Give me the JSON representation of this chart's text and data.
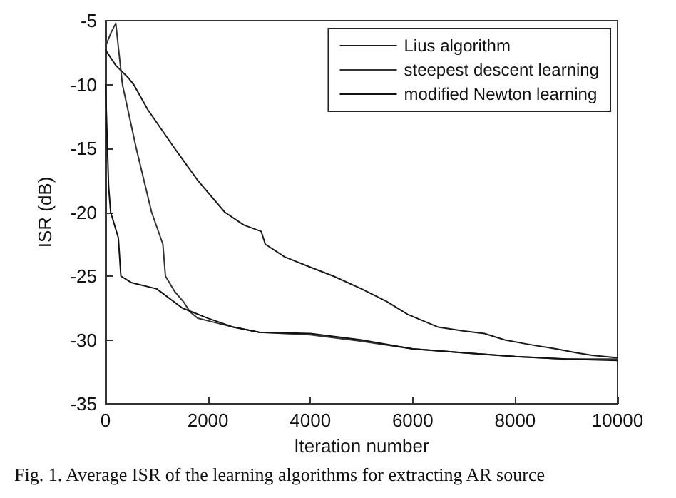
{
  "chart_data": {
    "type": "line",
    "xlabel": "Iteration number",
    "ylabel": "ISR (dB)",
    "annotations": [
      "Fig. 1. Average ISR of the learning algorithms for extracting AR source"
    ],
    "xlim": [
      0,
      10000
    ],
    "xticks": [
      0,
      2000,
      4000,
      6000,
      8000,
      10000
    ],
    "ylim": [
      -35,
      -5
    ],
    "yticks": [
      -35,
      -30,
      -25,
      -20,
      -15,
      -10,
      -5
    ],
    "grid": false,
    "legend": "top right",
    "marker": "none",
    "line_style": "solid",
    "series": [
      {
        "name": "Lius algorithm",
        "color": "#1a1a1a",
        "x": [
          0,
          200,
          450,
          550,
          830,
          1350,
          1800,
          2330,
          2700,
          3040,
          3120,
          3500,
          4000,
          4450,
          5000,
          5500,
          5900,
          6200,
          6500,
          7000,
          7400,
          7800,
          8200,
          8800,
          9200,
          9500,
          10000
        ],
        "values": [
          -7.3,
          -8.5,
          -9.5,
          -10,
          -12,
          -15,
          -17.5,
          -20,
          -21,
          -21.5,
          -22.5,
          -23.5,
          -24.3,
          -25,
          -26,
          -27,
          -28,
          -28.5,
          -29,
          -29.3,
          -29.5,
          -30,
          -30.3,
          -30.7,
          -31,
          -31.2,
          -31.4
        ]
      },
      {
        "name": "steepest descent learning",
        "color": "#333333",
        "x": [
          0,
          100,
          200,
          330,
          600,
          900,
          1120,
          1170,
          1350,
          1520,
          1650,
          1800,
          2000,
          2500,
          3000,
          4000,
          5000,
          6000,
          7000,
          8000,
          9000,
          10000
        ],
        "values": [
          -7,
          -6,
          -5.2,
          -10,
          -15,
          -20,
          -22.5,
          -25,
          -26.2,
          -27,
          -27.8,
          -28.3,
          -28.5,
          -29,
          -29.4,
          -29.6,
          -30.1,
          -30.7,
          -31,
          -31.3,
          -31.5,
          -31.5
        ]
      },
      {
        "name": "modified Newton learning",
        "color": "#111111",
        "x": [
          0,
          30,
          60,
          100,
          250,
          300,
          500,
          1000,
          1500,
          2000,
          2500,
          3000,
          4000,
          5000,
          6000,
          7000,
          8000,
          9000,
          10000
        ],
        "values": [
          -10,
          -14,
          -18,
          -20,
          -22,
          -25,
          -25.5,
          -26,
          -27.5,
          -28.3,
          -29,
          -29.4,
          -29.5,
          -30,
          -30.7,
          -31,
          -31.3,
          -31.5,
          -31.6
        ]
      }
    ]
  }
}
